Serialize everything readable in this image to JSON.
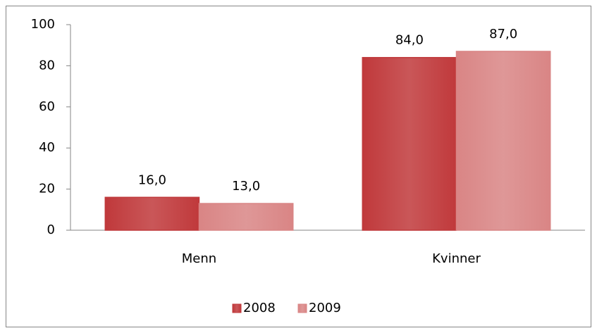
{
  "chart_data": {
    "type": "bar",
    "categories": [
      "Menn",
      "Kvinner"
    ],
    "series": [
      {
        "name": "2008",
        "color": "#c0393b",
        "values": [
          16,
          84
        ],
        "value_labels": [
          "16,0",
          "84,0"
        ]
      },
      {
        "name": "2009",
        "color": "#d98585",
        "values": [
          13,
          87
        ],
        "value_labels": [
          "13,0",
          "87,0"
        ]
      }
    ],
    "ylim": [
      0,
      100
    ],
    "yticks": [
      0,
      20,
      40,
      60,
      80,
      100
    ],
    "legend": "bottom"
  }
}
